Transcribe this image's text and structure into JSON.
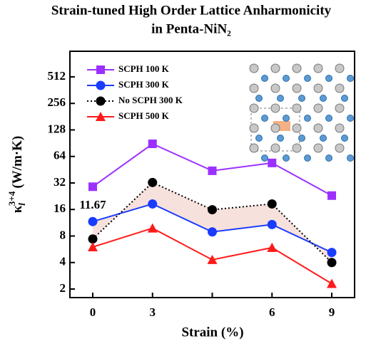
{
  "chart_data": {
    "type": "line",
    "title": [
      "Strain-tuned High Order Lattice Anharmonicity",
      "in Penta-NiN₂"
    ],
    "x_label": "Strain (%)",
    "y_label": {
      "symbol": "κ",
      "sub": "l",
      "sup": "3+4",
      "unit": "(W/m·K)"
    },
    "categories": [
      "0",
      "3",
      null,
      "6",
      "9"
    ],
    "log_base": 2,
    "ylim": [
      1.6,
      1000
    ],
    "yticks": [
      2,
      4,
      8,
      16,
      32,
      64,
      128,
      256,
      512
    ],
    "legend": "upper left",
    "series": [
      {
        "name": "SCPH 100 K",
        "color": "#9b30ff",
        "marker": "square",
        "dash": false,
        "values": [
          29,
          89,
          44,
          54,
          23
        ]
      },
      {
        "name": "SCPH 300 K",
        "color": "#1a3cff",
        "marker": "circle",
        "dash": false,
        "values": [
          11.67,
          18.5,
          8.9,
          10.8,
          5.2
        ],
        "value_labels": [
          "11.67",
          null,
          null,
          null,
          null
        ]
      },
      {
        "name": "No SCPH 300 K",
        "color": "#000000",
        "marker": "circle",
        "dash": true,
        "values": [
          7.4,
          32.4,
          15.9,
          18.5,
          4.0
        ]
      },
      {
        "name": "SCPH 500 K",
        "color": "#ff1a1a",
        "marker": "triangle",
        "dash": false,
        "values": [
          6.0,
          9.8,
          4.3,
          5.9,
          2.3
        ]
      }
    ],
    "shade_between": [
      1,
      2
    ],
    "shade_color": "#f7e1dc"
  }
}
